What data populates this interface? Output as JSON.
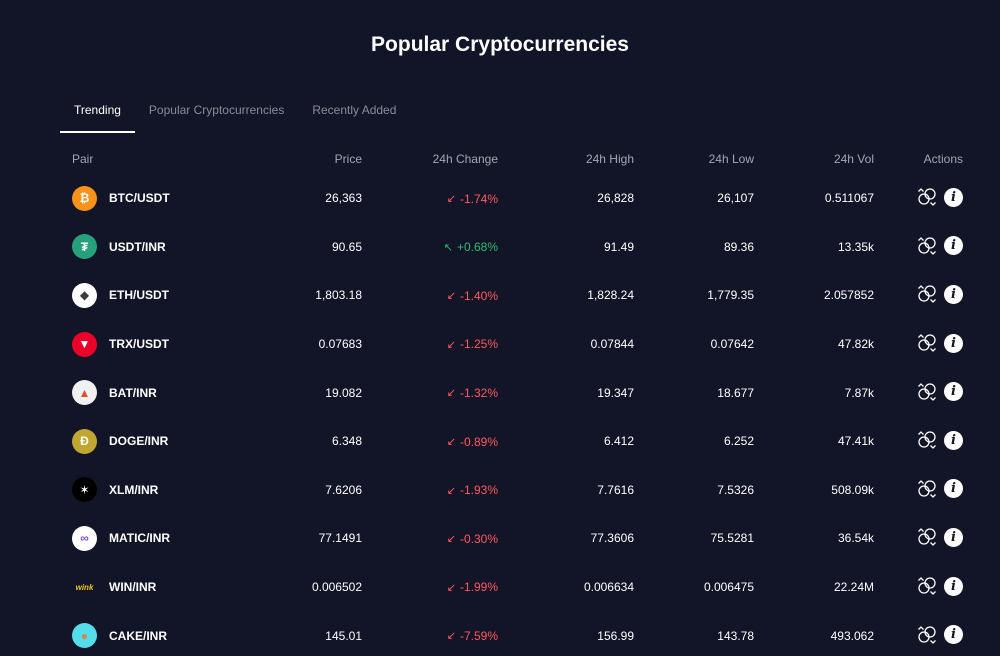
{
  "page": {
    "title": "Popular Cryptocurrencies"
  },
  "tabs": [
    {
      "label": "Trending",
      "active": true
    },
    {
      "label": "Popular Cryptocurrencies",
      "active": false
    },
    {
      "label": "Recently Added",
      "active": false
    }
  ],
  "table": {
    "headers": {
      "pair": "Pair",
      "price": "Price",
      "change": "24h Change",
      "high": "24h High",
      "low": "24h Low",
      "vol": "24h Vol",
      "actions": "Actions"
    },
    "rows": [
      {
        "icon": "bitcoin-icon",
        "pair": "BTC/USDT",
        "price": "26,363",
        "change": "-1.74%",
        "direction": "down",
        "high": "26,828",
        "low": "26,107",
        "vol": "0.511067"
      },
      {
        "icon": "tether-icon",
        "pair": "USDT/INR",
        "price": "90.65",
        "change": "+0.68%",
        "direction": "up",
        "high": "91.49",
        "low": "89.36",
        "vol": "13.35k"
      },
      {
        "icon": "ethereum-icon",
        "pair": "ETH/USDT",
        "price": "1,803.18",
        "change": "-1.40%",
        "direction": "down",
        "high": "1,828.24",
        "low": "1,779.35",
        "vol": "2.057852"
      },
      {
        "icon": "tron-icon",
        "pair": "TRX/USDT",
        "price": "0.07683",
        "change": "-1.25%",
        "direction": "down",
        "high": "0.07844",
        "low": "0.07642",
        "vol": "47.82k"
      },
      {
        "icon": "bat-icon",
        "pair": "BAT/INR",
        "price": "19.082",
        "change": "-1.32%",
        "direction": "down",
        "high": "19.347",
        "low": "18.677",
        "vol": "7.87k"
      },
      {
        "icon": "dogecoin-icon",
        "pair": "DOGE/INR",
        "price": "6.348",
        "change": "-0.89%",
        "direction": "down",
        "high": "6.412",
        "low": "6.252",
        "vol": "47.41k"
      },
      {
        "icon": "stellar-icon",
        "pair": "XLM/INR",
        "price": "7.6206",
        "change": "-1.93%",
        "direction": "down",
        "high": "7.7616",
        "low": "7.5326",
        "vol": "508.09k"
      },
      {
        "icon": "polygon-icon",
        "pair": "MATIC/INR",
        "price": "77.1491",
        "change": "-0.30%",
        "direction": "down",
        "high": "77.3606",
        "low": "75.5281",
        "vol": "36.54k"
      },
      {
        "icon": "wink-icon",
        "pair": "WIN/INR",
        "price": "0.006502",
        "change": "-1.99%",
        "direction": "down",
        "high": "0.006634",
        "low": "0.006475",
        "vol": "22.24M"
      },
      {
        "icon": "pancakeswap-icon",
        "pair": "CAKE/INR",
        "price": "145.01",
        "change": "-7.59%",
        "direction": "down",
        "high": "156.99",
        "low": "143.78",
        "vol": "493.062"
      }
    ]
  },
  "icon_logos": {
    "bitcoin-icon": {
      "glyph": "₿",
      "bg": "#f7931a",
      "fg": "#ffffff"
    },
    "tether-icon": {
      "glyph": "₮",
      "bg": "#26a17b",
      "fg": "#ffffff"
    },
    "ethereum-icon": {
      "glyph": "◆",
      "bg": "#ffffff",
      "fg": "#3c3c3d"
    },
    "tron-icon": {
      "glyph": "▼",
      "bg": "#eb0029",
      "fg": "#ffffff"
    },
    "bat-icon": {
      "glyph": "▲",
      "bg": "#f1f1f4",
      "fg": "#e04e2b"
    },
    "dogecoin-icon": {
      "glyph": "Ð",
      "bg": "#c2a633",
      "fg": "#ffffff"
    },
    "stellar-icon": {
      "glyph": "✶",
      "bg": "#000000",
      "fg": "#ffffff"
    },
    "polygon-icon": {
      "glyph": "∞",
      "bg": "#ffffff",
      "fg": "#8247e5"
    },
    "wink-icon": {
      "glyph": "wink",
      "bg": "#121427",
      "fg": "#f5c518"
    },
    "pancakeswap-icon": {
      "glyph": "●",
      "bg": "#53dee9",
      "fg": "#d1884f"
    }
  },
  "colors": {
    "background": "#121427",
    "down": "#ff5a5f",
    "up": "#2ebd6b",
    "muted": "#8a8c99"
  }
}
